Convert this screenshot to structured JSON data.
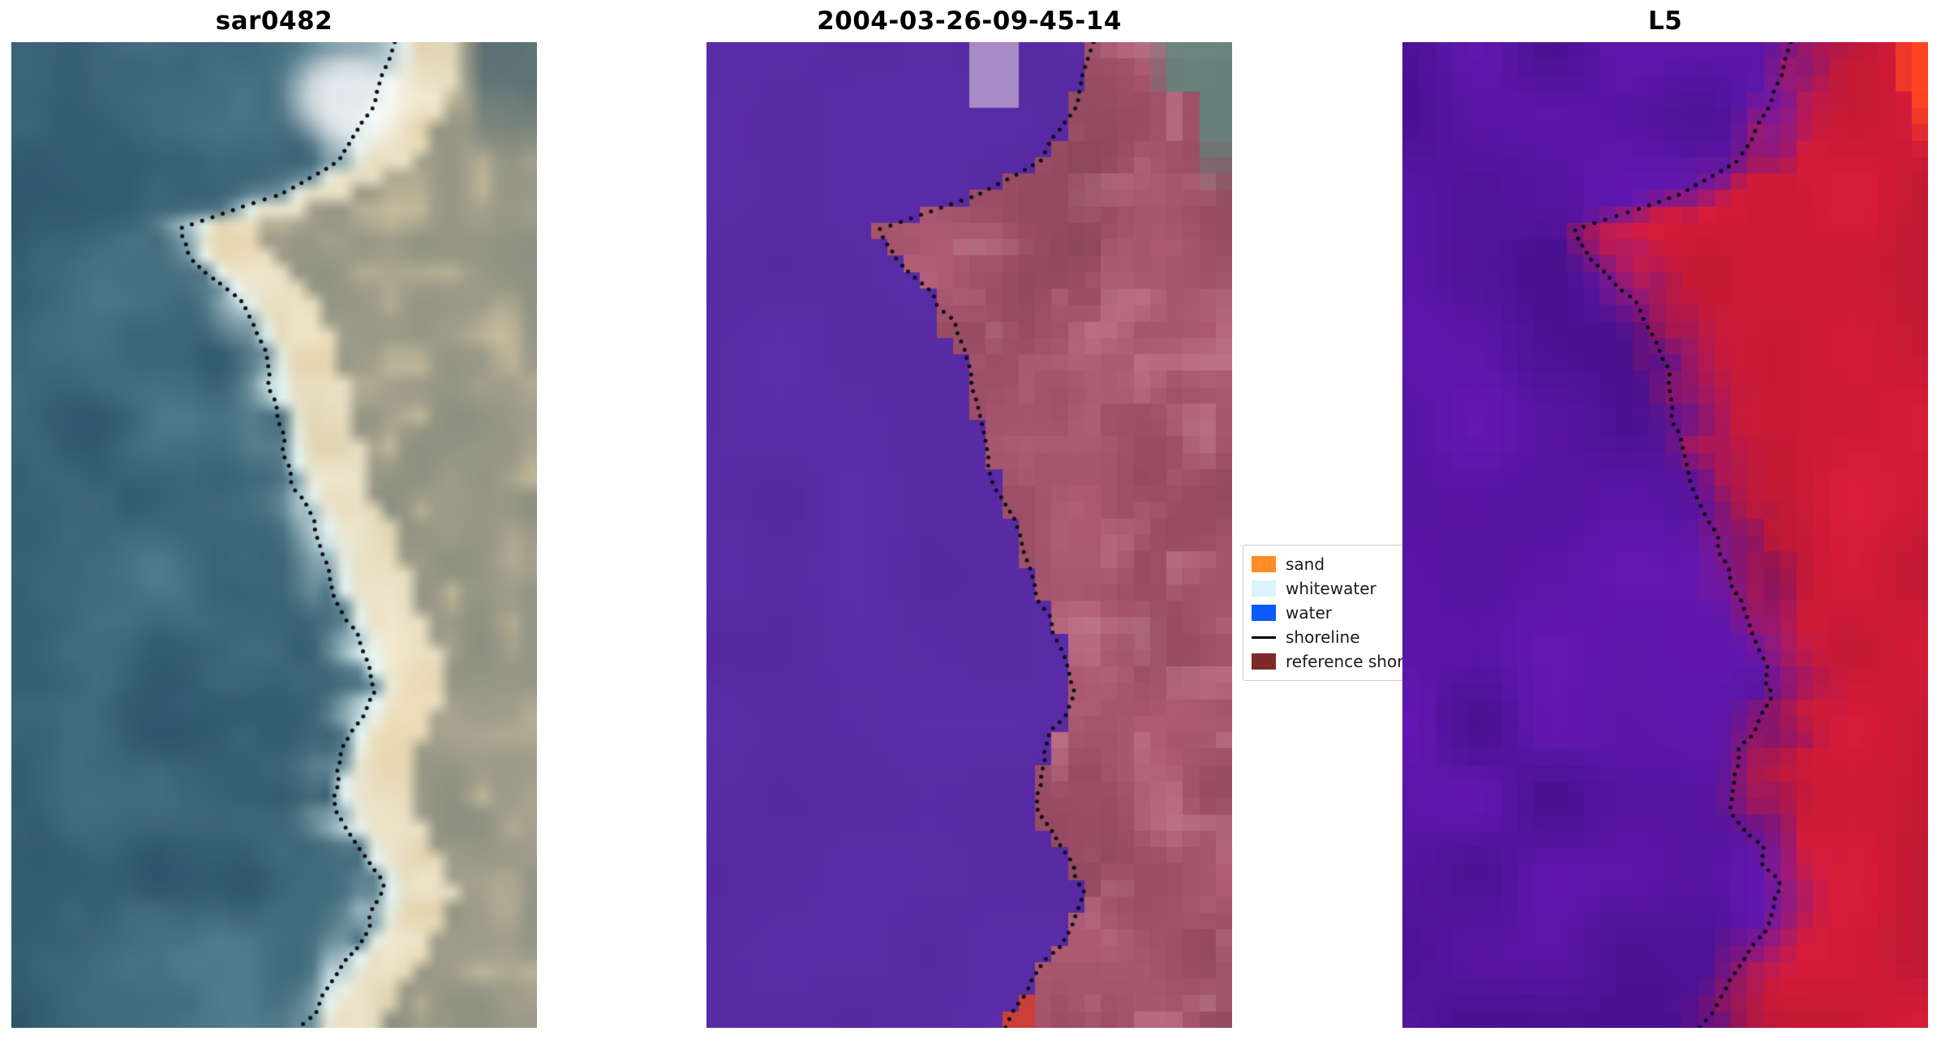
{
  "figure": {
    "background": "#ffffff"
  },
  "chart_data": {
    "type": "heatmap",
    "description": "Three-panel satellite shoreline comparison figure: a SAR image (sar0482), a classified optical scene (2004-03-26-09-45-14) and an L5 scene, each overlaid with a dotted detected shoreline; legend maps classes to colors.",
    "panels": [
      {
        "id": "sar",
        "title": "sar0482",
        "colors": {
          "water_deep": "#2d5468",
          "water_light": "#54808f",
          "whitewater": "#e9fbfb",
          "sand": "#e9d6ac",
          "sand_light": "#f8eed6",
          "land": "#8d9080",
          "land_light": "#b5ae97"
        }
      },
      {
        "id": "classified",
        "title": "2004-03-26-09-45-14",
        "colors": {
          "water": "#5b2ca8",
          "water_dark": "#4e2496",
          "land": "#b25c76",
          "land_dark": "#8a4459",
          "land_light": "#c98fa0",
          "lavender": "#b49ccb",
          "teal": "#5d8a7f",
          "red": "#d23b2e"
        }
      },
      {
        "id": "l5",
        "title": "L5",
        "colors": {
          "purple": "#6318b4",
          "purple_dark": "#47108c",
          "red": "#dd1d3c",
          "red_dark": "#a8142e",
          "orange": "#ff4420"
        }
      }
    ],
    "shoreline_path": [
      [
        0,
        0.74
      ],
      [
        0.06,
        0.7
      ],
      [
        0.12,
        0.64
      ],
      [
        0.155,
        0.52
      ],
      [
        0.17,
        0.44
      ],
      [
        0.19,
        0.33
      ],
      [
        0.22,
        0.36
      ],
      [
        0.26,
        0.44
      ],
      [
        0.31,
        0.49
      ],
      [
        0.38,
        0.52
      ],
      [
        0.45,
        0.55
      ],
      [
        0.5,
        0.6
      ],
      [
        0.56,
        0.63
      ],
      [
        0.62,
        0.68
      ],
      [
        0.66,
        0.7
      ],
      [
        0.7,
        0.66
      ],
      [
        0.74,
        0.63
      ],
      [
        0.78,
        0.63
      ],
      [
        0.82,
        0.68
      ],
      [
        0.86,
        0.72
      ],
      [
        0.9,
        0.69
      ],
      [
        0.94,
        0.64
      ],
      [
        0.97,
        0.6
      ],
      [
        1.0,
        0.57
      ]
    ],
    "legend": {
      "entries": [
        {
          "label": "sand",
          "type": "patch",
          "color": "#ff8c26"
        },
        {
          "label": "whitewater",
          "type": "patch",
          "color": "#d9f4fb"
        },
        {
          "label": "water",
          "type": "patch",
          "color": "#0b5cff"
        },
        {
          "label": "shoreline",
          "type": "line",
          "color": "#000000"
        },
        {
          "label": "reference shoreline",
          "type": "patch",
          "color": "#7d2a2a"
        }
      ]
    }
  }
}
